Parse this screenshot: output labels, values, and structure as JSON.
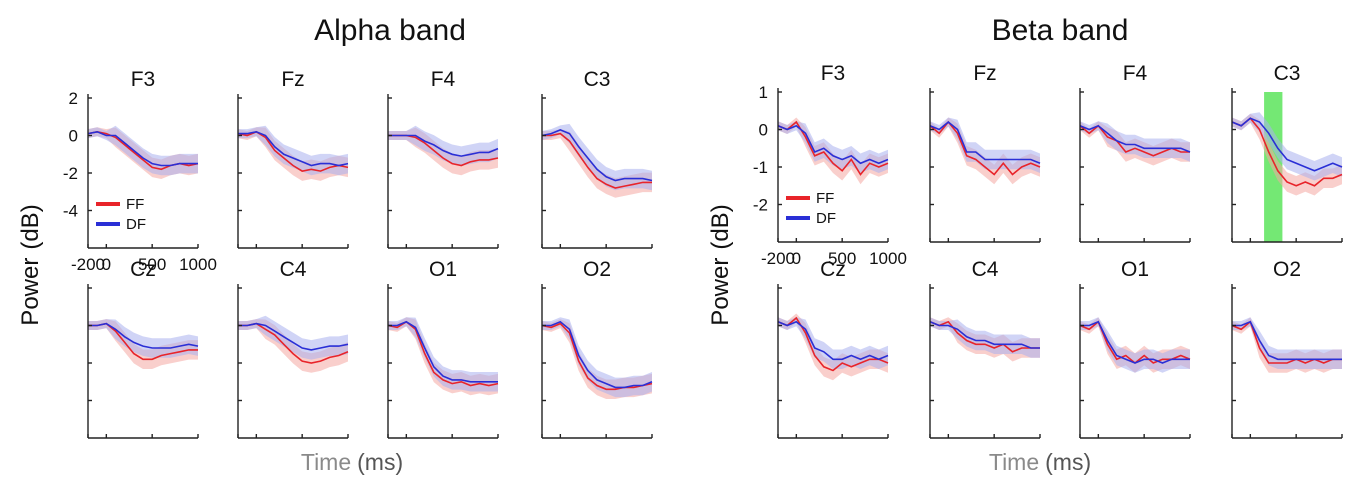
{
  "colors": {
    "FF": "#e8242a",
    "DF": "#2a2fd6",
    "FF_band": "#f4a7a2",
    "DF_band": "#a9b1ef",
    "highlight": "#45e045"
  },
  "chart_data": [
    {
      "type": "line",
      "title": "Alpha band",
      "ylabel_main": "Power",
      "ylabel_unit": "(dB)",
      "xlabel_main": "Time",
      "xlabel_unit": "(ms)",
      "xlim": [
        -200,
        1000
      ],
      "ylim": [
        -6,
        2
      ],
      "xticks": [
        -200,
        0,
        500,
        1000
      ],
      "yticks": [
        2,
        0,
        -2,
        -4
      ],
      "legend": [
        "FF",
        "DF"
      ],
      "legend_position": "lower-left of first subplot",
      "x": [
        -200,
        -100,
        0,
        100,
        200,
        300,
        400,
        500,
        600,
        700,
        800,
        900,
        1000
      ],
      "subplots": [
        {
          "channel": "F3",
          "FF": [
            0.1,
            0.2,
            0.1,
            -0.1,
            -0.5,
            -0.9,
            -1.3,
            -1.7,
            -1.8,
            -1.6,
            -1.5,
            -1.6,
            -1.5
          ],
          "DF": [
            0.1,
            0.2,
            0.0,
            0.0,
            -0.4,
            -0.8,
            -1.2,
            -1.5,
            -1.6,
            -1.6,
            -1.5,
            -1.5,
            -1.5
          ]
        },
        {
          "channel": "Fz",
          "FF": [
            0.1,
            0.0,
            0.2,
            -0.1,
            -0.8,
            -1.2,
            -1.6,
            -1.9,
            -1.8,
            -1.9,
            -1.7,
            -1.6,
            -1.7
          ],
          "DF": [
            0.1,
            0.1,
            0.2,
            0.0,
            -0.6,
            -1.0,
            -1.2,
            -1.4,
            -1.6,
            -1.5,
            -1.5,
            -1.6,
            -1.5
          ]
        },
        {
          "channel": "F4",
          "FF": [
            0.0,
            0.0,
            0.0,
            -0.1,
            -0.4,
            -0.8,
            -1.2,
            -1.5,
            -1.6,
            -1.4,
            -1.3,
            -1.3,
            -1.2
          ],
          "DF": [
            0.0,
            0.0,
            0.0,
            0.0,
            -0.3,
            -0.5,
            -0.8,
            -1.0,
            -1.1,
            -1.0,
            -0.9,
            -0.9,
            -0.7
          ]
        },
        {
          "channel": "C3",
          "FF": [
            0.0,
            0.0,
            0.1,
            -0.3,
            -1.0,
            -1.7,
            -2.3,
            -2.6,
            -2.8,
            -2.7,
            -2.6,
            -2.5,
            -2.5
          ],
          "DF": [
            0.0,
            0.1,
            0.3,
            0.1,
            -0.6,
            -1.2,
            -1.8,
            -2.2,
            -2.4,
            -2.3,
            -2.3,
            -2.3,
            -2.4
          ]
        },
        {
          "channel": "Cz",
          "FF": [
            0.0,
            0.0,
            0.1,
            -0.3,
            -0.9,
            -1.5,
            -1.8,
            -1.8,
            -1.6,
            -1.5,
            -1.4,
            -1.3,
            -1.3
          ],
          "DF": [
            0.0,
            0.0,
            0.1,
            -0.2,
            -0.6,
            -0.9,
            -1.1,
            -1.2,
            -1.2,
            -1.2,
            -1.1,
            -1.0,
            -1.1
          ]
        },
        {
          "channel": "C4",
          "FF": [
            0.0,
            0.0,
            0.1,
            -0.2,
            -0.5,
            -1.0,
            -1.5,
            -1.9,
            -2.0,
            -1.9,
            -1.7,
            -1.6,
            -1.4
          ],
          "DF": [
            0.0,
            0.0,
            0.1,
            0.0,
            -0.3,
            -0.6,
            -0.9,
            -1.2,
            -1.3,
            -1.2,
            -1.1,
            -1.1,
            -1.0
          ]
        },
        {
          "channel": "O1",
          "FF": [
            0.0,
            -0.1,
            0.2,
            -0.2,
            -1.5,
            -2.5,
            -2.9,
            -3.1,
            -3.0,
            -3.2,
            -3.1,
            -3.2,
            -3.1
          ],
          "DF": [
            0.0,
            0.0,
            0.2,
            -0.1,
            -1.2,
            -2.2,
            -2.7,
            -2.9,
            -2.9,
            -3.0,
            -3.0,
            -3.0,
            -3.0
          ]
        },
        {
          "channel": "O2",
          "FF": [
            0.0,
            -0.1,
            0.1,
            -0.4,
            -1.9,
            -2.8,
            -3.2,
            -3.4,
            -3.4,
            -3.3,
            -3.3,
            -3.2,
            -3.1
          ],
          "DF": [
            0.0,
            0.0,
            0.2,
            -0.2,
            -1.6,
            -2.4,
            -2.9,
            -3.1,
            -3.3,
            -3.3,
            -3.2,
            -3.2,
            -3.0
          ]
        }
      ]
    },
    {
      "type": "line",
      "title": "Beta band",
      "ylabel_main": "Power",
      "ylabel_unit": "(dB)",
      "xlabel_main": "Time",
      "xlabel_unit": "(ms)",
      "xlim": [
        -200,
        1000
      ],
      "ylim": [
        -3,
        1
      ],
      "xticks": [
        -200,
        0,
        500,
        1000
      ],
      "yticks": [
        1,
        0,
        -1,
        -2
      ],
      "legend": [
        "FF",
        "DF"
      ],
      "legend_position": "lower-left of first subplot",
      "highlight_channel": "C3",
      "highlight_x": [
        150,
        350
      ],
      "x": [
        -200,
        -100,
        0,
        100,
        200,
        300,
        400,
        500,
        600,
        700,
        800,
        900,
        1000
      ],
      "subplots": [
        {
          "channel": "F3",
          "FF": [
            0.1,
            0.0,
            0.2,
            -0.2,
            -0.7,
            -0.6,
            -0.9,
            -1.1,
            -0.8,
            -1.2,
            -0.9,
            -1.0,
            -0.9
          ],
          "DF": [
            0.1,
            0.0,
            0.1,
            -0.1,
            -0.6,
            -0.5,
            -0.7,
            -0.8,
            -0.7,
            -0.9,
            -0.8,
            -0.9,
            -0.8
          ]
        },
        {
          "channel": "Fz",
          "FF": [
            0.1,
            -0.1,
            0.2,
            -0.1,
            -0.7,
            -0.8,
            -1.0,
            -1.2,
            -0.9,
            -1.2,
            -1.0,
            -0.9,
            -1.0
          ],
          "DF": [
            0.1,
            0.0,
            0.2,
            0.0,
            -0.6,
            -0.6,
            -0.8,
            -0.8,
            -0.8,
            -0.8,
            -0.8,
            -0.8,
            -0.9
          ]
        },
        {
          "channel": "F4",
          "FF": [
            0.1,
            -0.1,
            0.1,
            -0.2,
            -0.3,
            -0.6,
            -0.5,
            -0.6,
            -0.7,
            -0.6,
            -0.5,
            -0.6,
            -0.6
          ],
          "DF": [
            0.1,
            0.0,
            0.1,
            -0.1,
            -0.3,
            -0.4,
            -0.4,
            -0.5,
            -0.5,
            -0.5,
            -0.5,
            -0.5,
            -0.6
          ]
        },
        {
          "channel": "C3",
          "FF": [
            0.2,
            0.1,
            0.3,
            0.0,
            -0.6,
            -1.1,
            -1.4,
            -1.5,
            -1.4,
            -1.5,
            -1.3,
            -1.3,
            -1.2
          ],
          "DF": [
            0.2,
            0.1,
            0.3,
            0.2,
            -0.1,
            -0.5,
            -0.8,
            -0.9,
            -1.0,
            -1.1,
            -1.0,
            -0.9,
            -1.0
          ]
        },
        {
          "channel": "Cz",
          "FF": [
            0.1,
            0.0,
            0.2,
            -0.2,
            -0.8,
            -1.1,
            -1.2,
            -1.0,
            -1.1,
            -1.0,
            -0.9,
            -0.9,
            -1.0
          ],
          "DF": [
            0.1,
            0.0,
            0.1,
            -0.1,
            -0.6,
            -0.7,
            -0.9,
            -0.9,
            -0.8,
            -0.9,
            -0.8,
            -0.9,
            -0.8
          ]
        },
        {
          "channel": "C4",
          "FF": [
            0.1,
            0.0,
            0.1,
            -0.2,
            -0.4,
            -0.5,
            -0.5,
            -0.6,
            -0.5,
            -0.7,
            -0.6,
            -0.6,
            -0.6
          ],
          "DF": [
            0.1,
            0.0,
            0.0,
            -0.1,
            -0.3,
            -0.4,
            -0.4,
            -0.5,
            -0.5,
            -0.5,
            -0.5,
            -0.6,
            -0.6
          ]
        },
        {
          "channel": "O1",
          "FF": [
            0.0,
            -0.1,
            0.1,
            -0.5,
            -0.9,
            -0.8,
            -1.0,
            -0.8,
            -1.0,
            -0.9,
            -0.9,
            -0.8,
            -0.9
          ],
          "DF": [
            0.0,
            0.0,
            0.1,
            -0.4,
            -0.8,
            -0.9,
            -1.0,
            -0.9,
            -0.9,
            -1.0,
            -0.9,
            -0.9,
            -0.9
          ]
        },
        {
          "channel": "O2",
          "FF": [
            0.0,
            -0.1,
            0.1,
            -0.6,
            -1.0,
            -1.0,
            -1.0,
            -0.9,
            -1.0,
            -0.9,
            -1.0,
            -0.9,
            -0.9
          ],
          "DF": [
            0.0,
            0.0,
            0.1,
            -0.4,
            -0.8,
            -0.9,
            -0.9,
            -0.9,
            -0.9,
            -0.9,
            -0.9,
            -0.9,
            -0.9
          ]
        }
      ]
    }
  ]
}
